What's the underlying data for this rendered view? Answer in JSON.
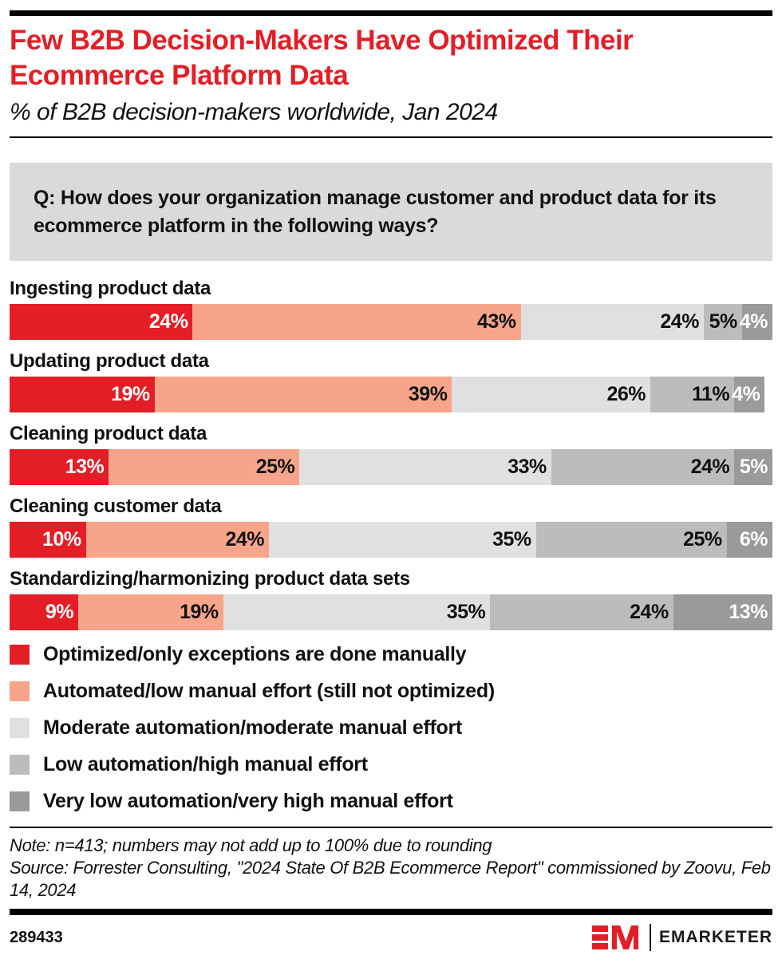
{
  "header": {
    "title": "Few B2B Decision-Makers Have Optimized Their Ecommerce Platform Data",
    "subtitle": "% of B2B decision-makers worldwide, Jan 2024"
  },
  "question": "Q: How does your organization manage customer and product data for its ecommerce platform in the following ways?",
  "colors": {
    "brand_red": "#e41e26",
    "salmon": "#f6a58b",
    "light_gray": "#e0e0e0",
    "mid_gray": "#bcbcbc",
    "dark_gray": "#9a9a9a",
    "question_box_bg": "#dadada"
  },
  "chart_data": {
    "type": "bar",
    "subtype": "horizontal-stacked",
    "unit": "%",
    "xlim": [
      0,
      100
    ],
    "grid": false,
    "legend_position": "bottom",
    "value_label_format": "{value}%",
    "categories": [
      "Ingesting product data",
      "Updating product data",
      "Cleaning product data",
      "Cleaning customer data",
      "Standardizing/harmonizing product data sets"
    ],
    "series": [
      {
        "name": "Optimized/only exceptions are done manually",
        "color": "#e41e26",
        "text_color": "#ffffff",
        "values": [
          24,
          19,
          13,
          10,
          9
        ]
      },
      {
        "name": "Automated/low manual effort (still not optimized)",
        "color": "#f6a58b",
        "text_color": "#111111",
        "values": [
          43,
          39,
          25,
          24,
          19
        ]
      },
      {
        "name": "Moderate automation/moderate manual effort",
        "color": "#e0e0e0",
        "text_color": "#111111",
        "values": [
          24,
          26,
          33,
          35,
          35
        ]
      },
      {
        "name": "Low automation/high manual effort",
        "color": "#bcbcbc",
        "text_color": "#111111",
        "values": [
          5,
          11,
          24,
          25,
          24
        ]
      },
      {
        "name": "Very low automation/very high manual effort",
        "color": "#9a9a9a",
        "text_color": "#ffffff",
        "values": [
          4,
          4,
          5,
          6,
          13
        ]
      }
    ]
  },
  "notes": {
    "note": "Note: n=413; numbers may not add up to 100% due to rounding",
    "source": "Source: Forrester Consulting, \"2024 State Of B2B Ecommerce Report\" commissioned by Zoovu, Feb 14, 2024"
  },
  "footer": {
    "chart_id": "289433",
    "brand": "EMARKETER"
  }
}
